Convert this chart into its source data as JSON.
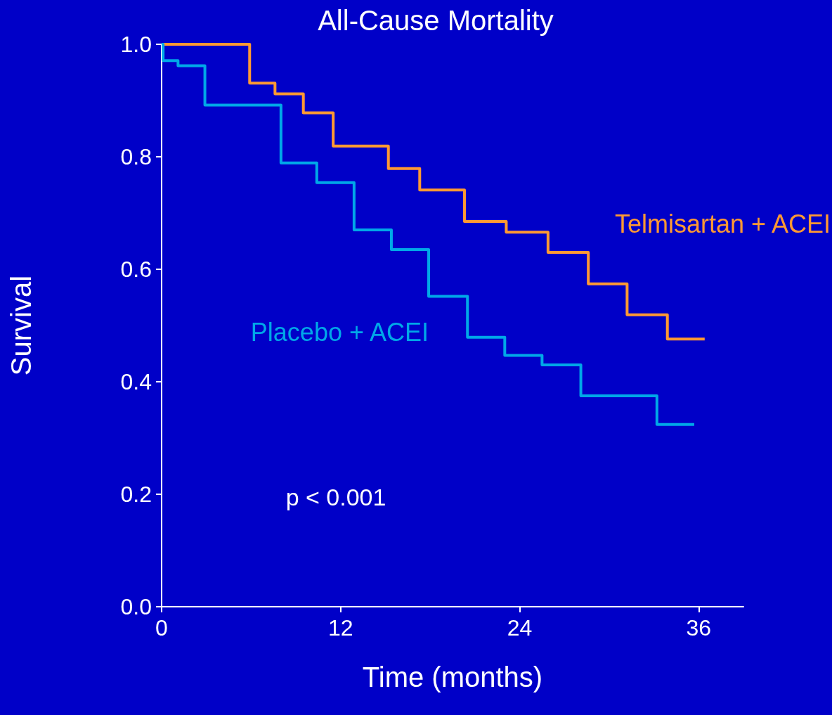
{
  "chart_data": {
    "type": "step",
    "title": "All-Cause Mortality",
    "xlabel": "Time (months)",
    "ylabel": "Survival",
    "series": [
      {
        "name": "Telmisartan + ACEI",
        "color": "#ff9933",
        "x": [
          0,
          5.9,
          7.6,
          9.5,
          11.5,
          15.2,
          17.3,
          20.3,
          23.1,
          25.9,
          28.6,
          31.2,
          33.9,
          36.4
        ],
        "values": [
          1.0,
          0.931,
          0.912,
          0.878,
          0.819,
          0.779,
          0.741,
          0.685,
          0.666,
          0.63,
          0.574,
          0.519,
          0.476,
          0.476
        ]
      },
      {
        "name": "Placebo + ACEI",
        "color": "#00a8e8",
        "x": [
          0,
          0.1,
          1.1,
          2.9,
          8.0,
          10.4,
          12.9,
          15.4,
          17.9,
          20.5,
          23.0,
          25.5,
          28.1,
          33.2,
          35.7
        ],
        "values": [
          1.0,
          0.971,
          0.962,
          0.892,
          0.789,
          0.754,
          0.67,
          0.635,
          0.552,
          0.479,
          0.447,
          0.43,
          0.375,
          0.324,
          0.324
        ]
      }
    ],
    "annotations": [
      "p < 0.001"
    ],
    "xlim": [
      0,
      39
    ],
    "xticks": [
      0,
      12,
      24,
      36
    ],
    "ylim": [
      0,
      1
    ],
    "yticks": [
      {
        "value": 0,
        "label": "0.0"
      },
      0.2,
      0.4,
      0.6,
      0.8,
      {
        "value": 1,
        "label": "1.0"
      }
    ],
    "grid": false,
    "legend": false,
    "marker": "none",
    "line_style": "solid"
  }
}
